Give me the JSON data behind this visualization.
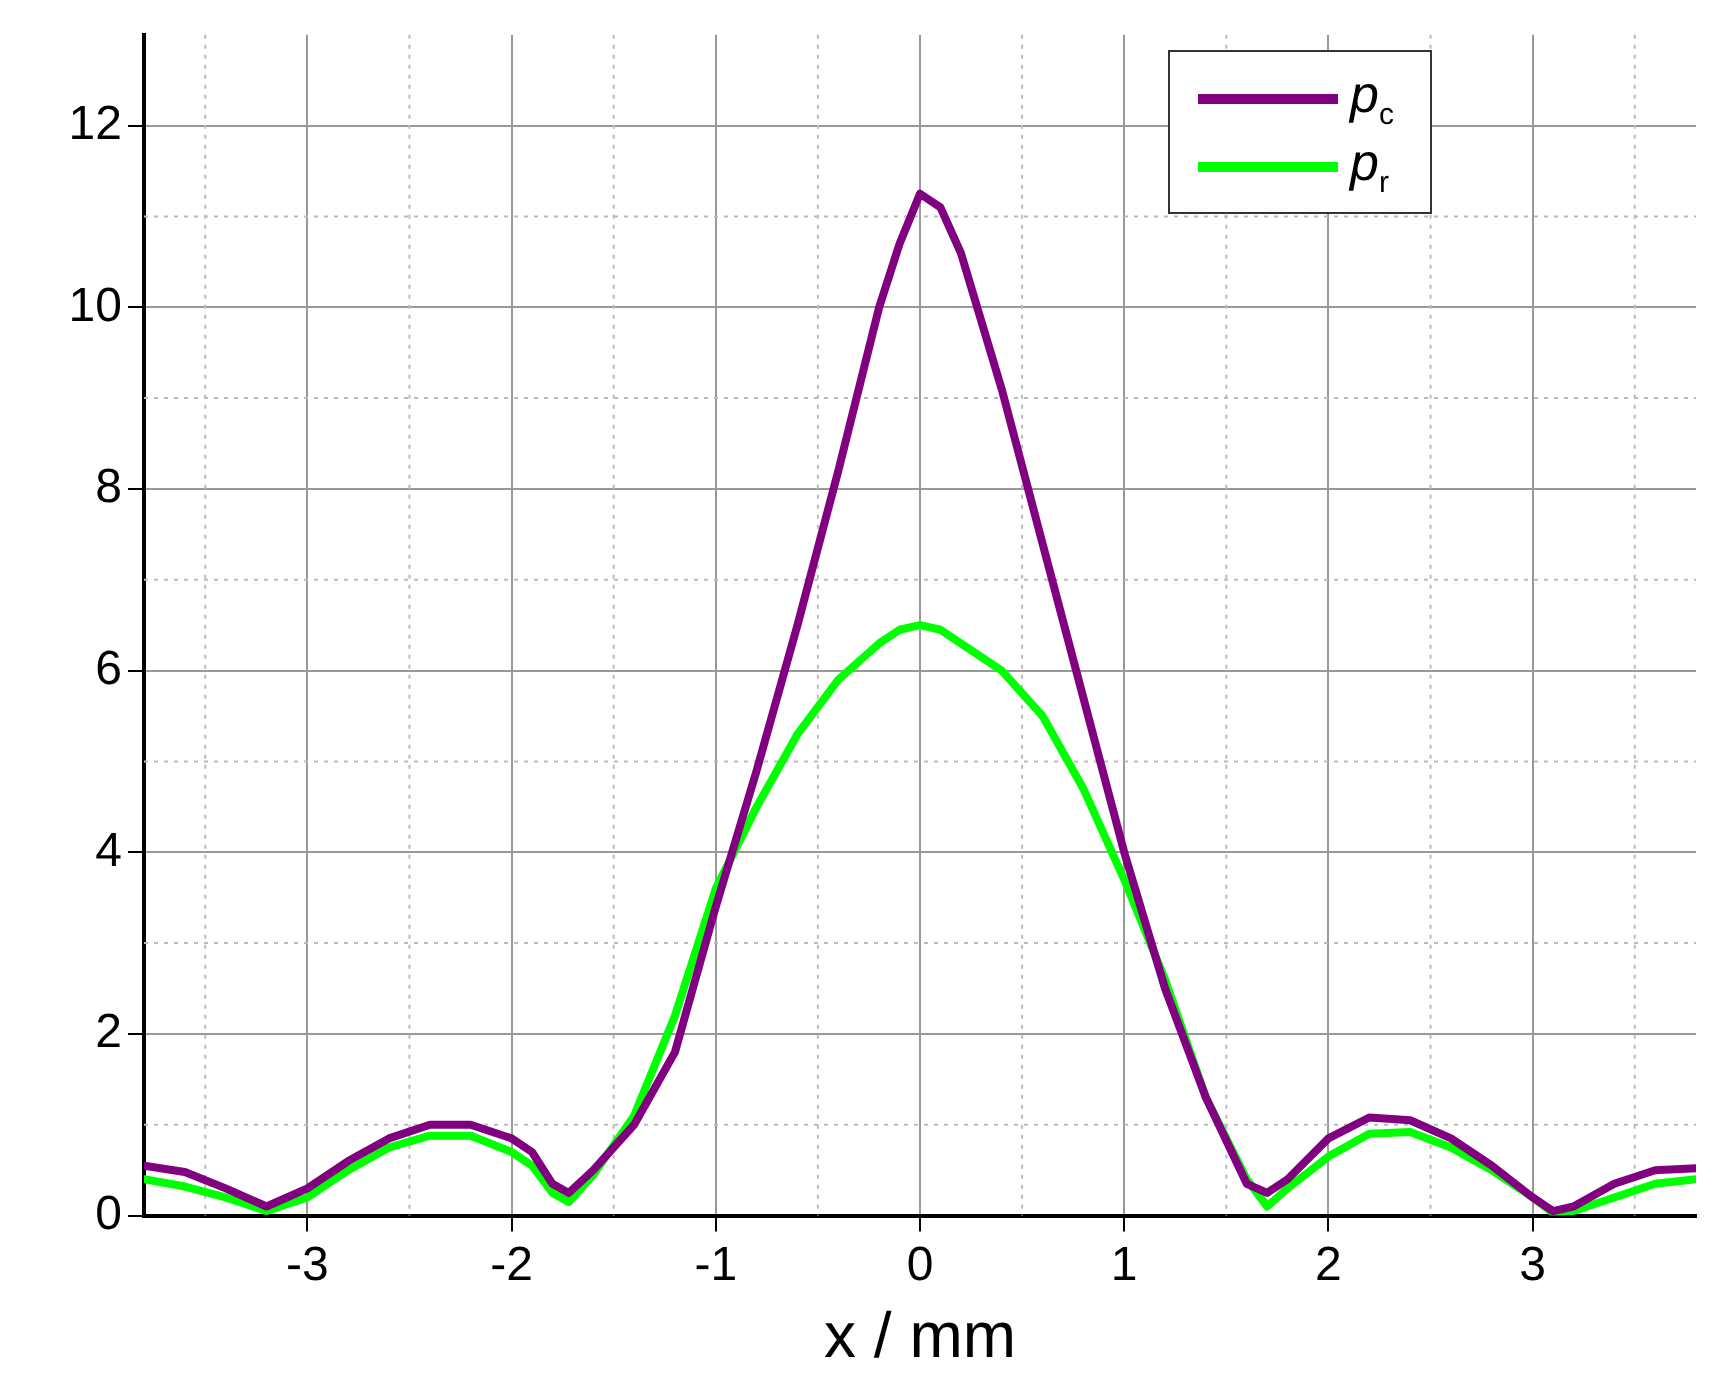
{
  "chart_data": {
    "type": "line",
    "xlabel": "x / mm",
    "xlim": [
      -3.8,
      3.8
    ],
    "xticks": [
      -3,
      -2,
      -1,
      0,
      1,
      2,
      3
    ],
    "ylim": [
      0,
      13
    ],
    "yticks": [
      0,
      2,
      4,
      6,
      8,
      10,
      12
    ],
    "grid": true,
    "legend": "top right",
    "marker": "none",
    "line_style": "solid",
    "x": [
      -3.8,
      -3.6,
      -3.4,
      -3.2,
      -3.0,
      -2.8,
      -2.6,
      -2.4,
      -2.2,
      -2.0,
      -1.9,
      -1.8,
      -1.72,
      -1.6,
      -1.4,
      -1.2,
      -1.0,
      -0.8,
      -0.6,
      -0.4,
      -0.2,
      -0.1,
      0,
      0.1,
      0.2,
      0.4,
      0.6,
      0.8,
      1.0,
      1.2,
      1.4,
      1.6,
      1.7,
      1.8,
      2.0,
      2.2,
      2.4,
      2.6,
      2.8,
      3.0,
      3.1,
      3.2,
      3.4,
      3.6,
      3.8
    ],
    "series": [
      {
        "name": "p$_{c}$",
        "color": "#800080",
        "values": [
          0.55,
          0.48,
          0.3,
          0.1,
          0.3,
          0.6,
          0.85,
          1.0,
          1.0,
          0.85,
          0.7,
          0.35,
          0.25,
          0.5,
          1.0,
          1.8,
          3.4,
          4.9,
          6.5,
          8.2,
          10.0,
          10.7,
          11.25,
          11.1,
          10.6,
          9.1,
          7.4,
          5.7,
          4.0,
          2.5,
          1.3,
          0.35,
          0.25,
          0.4,
          0.85,
          1.08,
          1.05,
          0.85,
          0.55,
          0.2,
          0.05,
          0.1,
          0.35,
          0.5,
          0.52
        ]
      },
      {
        "name": "p$_{r}$",
        "color": "#00ff00",
        "values": [
          0.4,
          0.32,
          0.2,
          0.05,
          0.2,
          0.5,
          0.75,
          0.88,
          0.88,
          0.7,
          0.55,
          0.25,
          0.15,
          0.45,
          1.1,
          2.2,
          3.6,
          4.5,
          5.3,
          5.9,
          6.3,
          6.45,
          6.5,
          6.45,
          6.3,
          6.0,
          5.5,
          4.7,
          3.7,
          2.6,
          1.3,
          0.4,
          0.1,
          0.3,
          0.65,
          0.9,
          0.92,
          0.75,
          0.5,
          0.2,
          0.03,
          0.05,
          0.2,
          0.35,
          0.4
        ]
      }
    ]
  }
}
